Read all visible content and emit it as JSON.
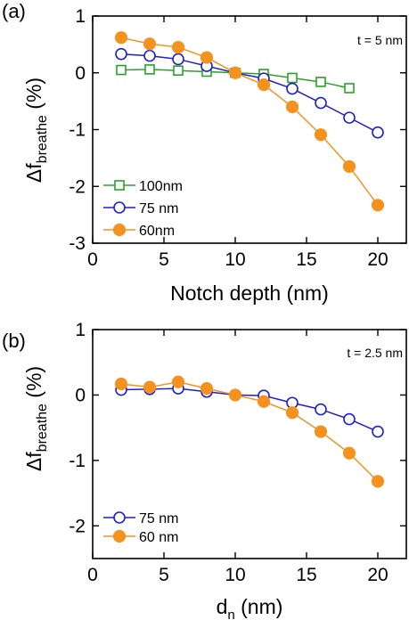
{
  "chart_data": [
    {
      "panel_label": "(a)",
      "type": "line",
      "annotation": "t = 5 nm",
      "xlabel": "Notch depth (nm)",
      "ylabel_prefix": "Δf",
      "ylabel_sub": "breathe",
      "ylabel_suffix": " (%)",
      "xlim": [
        0,
        22
      ],
      "ylim": [
        -3,
        1
      ],
      "xticks": [
        0,
        5,
        10,
        15,
        20
      ],
      "yticks": [
        -3,
        -2,
        -1,
        0,
        1
      ],
      "legend_position": "bottom-left",
      "series": [
        {
          "name": "100nm",
          "color": "#2ca02c",
          "marker": "open-square",
          "x": [
            2,
            4,
            6,
            8,
            10,
            12,
            14,
            16,
            18
          ],
          "y": [
            0.05,
            0.06,
            0.04,
            0.02,
            0.0,
            -0.02,
            -0.09,
            -0.16,
            -0.27
          ]
        },
        {
          "name": "75 nm",
          "color": "#1f1fcc",
          "marker": "open-circle",
          "x": [
            2,
            4,
            6,
            8,
            10,
            12,
            14,
            16,
            18,
            20
          ],
          "y": [
            0.33,
            0.3,
            0.24,
            0.12,
            0.0,
            -0.1,
            -0.28,
            -0.53,
            -0.79,
            -1.05
          ]
        },
        {
          "name": "60nm",
          "color": "#f5921e",
          "marker": "filled-circle",
          "x": [
            2,
            4,
            6,
            8,
            10,
            12,
            14,
            16,
            18,
            20
          ],
          "y": [
            0.62,
            0.51,
            0.45,
            0.27,
            0.0,
            -0.21,
            -0.6,
            -1.09,
            -1.65,
            -2.33
          ]
        }
      ]
    },
    {
      "panel_label": "(b)",
      "type": "line",
      "annotation": "t = 2.5 nm",
      "xlabel_prefix": "d",
      "xlabel_sub": "n",
      "xlabel_suffix": " (nm)",
      "ylabel_prefix": "Δf",
      "ylabel_sub": "breathe",
      "ylabel_suffix": " (%)",
      "xlim": [
        0,
        22
      ],
      "ylim": [
        -2.5,
        1
      ],
      "xticks": [
        0,
        5,
        10,
        15,
        20
      ],
      "yticks": [
        -2,
        -1,
        0,
        1
      ],
      "legend_position": "bottom-left",
      "series": [
        {
          "name": "75 nm",
          "color": "#1f1fcc",
          "marker": "open-circle",
          "x": [
            2,
            4,
            6,
            8,
            10,
            12,
            14,
            16,
            18,
            20
          ],
          "y": [
            0.08,
            0.09,
            0.1,
            0.05,
            0.0,
            -0.01,
            -0.12,
            -0.22,
            -0.37,
            -0.56
          ]
        },
        {
          "name": "60 nm",
          "color": "#f5921e",
          "marker": "filled-circle",
          "x": [
            2,
            4,
            6,
            8,
            10,
            12,
            14,
            16,
            18,
            20
          ],
          "y": [
            0.17,
            0.12,
            0.2,
            0.1,
            0.0,
            -0.1,
            -0.27,
            -0.56,
            -0.89,
            -1.32
          ]
        }
      ]
    }
  ]
}
